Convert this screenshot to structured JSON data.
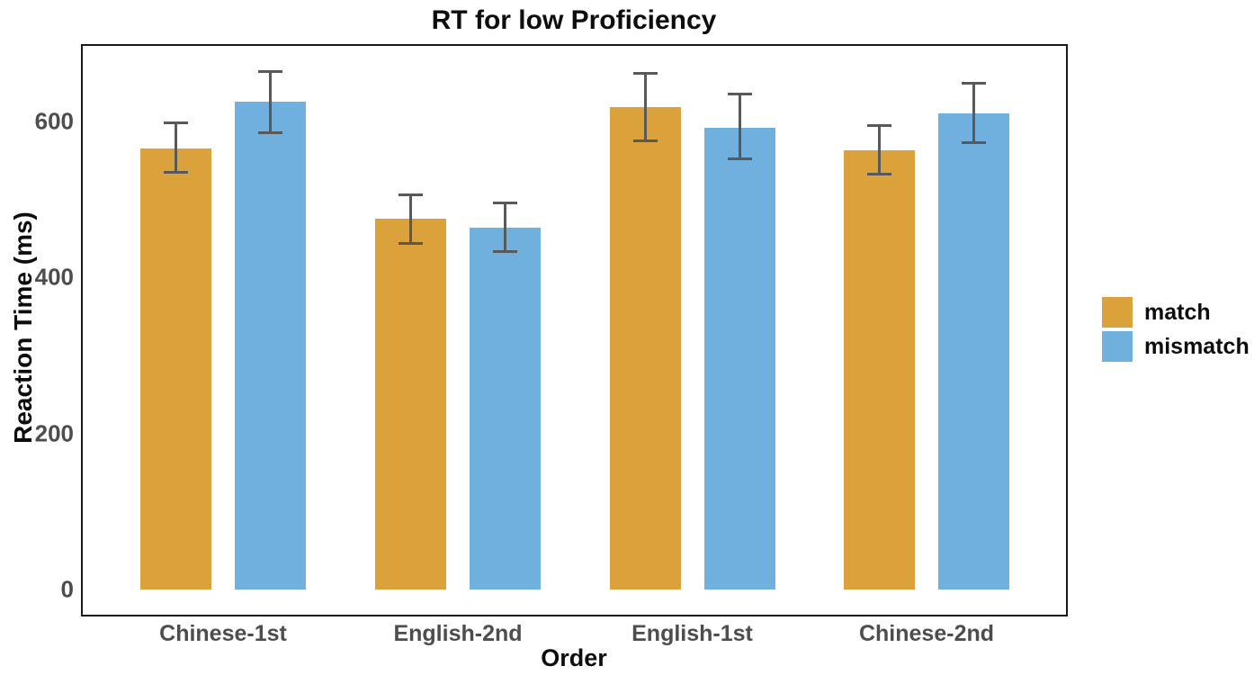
{
  "chart_data": {
    "type": "bar",
    "title": "RT for low Proficiency",
    "xlabel": "Order",
    "ylabel": "Reaction Time (ms)",
    "categories": [
      "Chinese-1st",
      "English-2nd",
      "English-1st",
      "Chinese-2nd"
    ],
    "series": [
      {
        "name": "match",
        "color": "#DBA23B",
        "values": [
          565,
          475,
          618,
          563
        ],
        "error_low": [
          533,
          442,
          574,
          531
        ],
        "error_high": [
          600,
          508,
          664,
          596
        ]
      },
      {
        "name": "mismatch",
        "color": "#6FB0DF",
        "values": [
          625,
          464,
          592,
          610
        ],
        "error_low": [
          584,
          432,
          550,
          571
        ],
        "error_high": [
          666,
          497,
          637,
          651
        ]
      }
    ],
    "yticks": [
      0,
      200,
      400,
      600
    ],
    "ylim": [
      -32,
      697
    ],
    "grid": false,
    "legend_position": "right",
    "colors": {
      "error_bar": "#595959",
      "axis_text": "#4D4D4D",
      "title_text": "#0D0D0D",
      "frame": "#1A1A1A",
      "background": "#FFFFFF"
    }
  }
}
